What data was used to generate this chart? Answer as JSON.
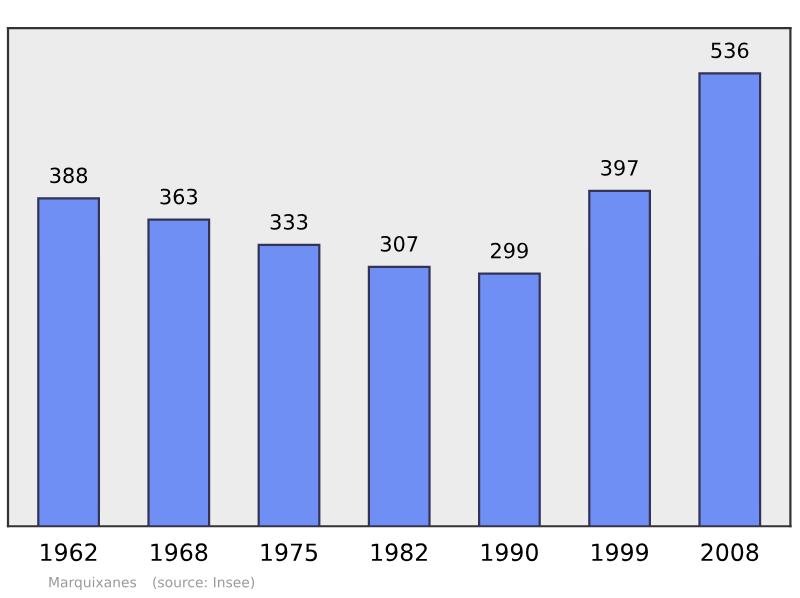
{
  "chart_data": {
    "type": "bar",
    "categories": [
      "1962",
      "1968",
      "1975",
      "1982",
      "1990",
      "1999",
      "2008"
    ],
    "values": [
      388,
      363,
      333,
      307,
      299,
      397,
      536
    ],
    "color": "#6f8ff5",
    "data_labels": true,
    "annotations": [
      "Marquixanes",
      "(source: Insee)"
    ]
  }
}
